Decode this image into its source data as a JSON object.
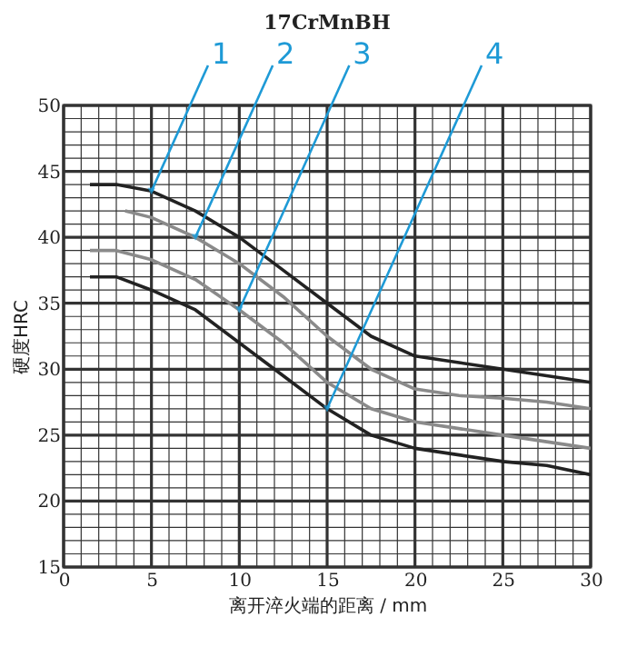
{
  "chart_data": {
    "type": "line",
    "title": "17CrMnBH",
    "xlabel": "离开淬火端的距离 / mm",
    "ylabel": "硬度HRC",
    "x": [
      1.5,
      3,
      5,
      7.5,
      10,
      12.5,
      15,
      17.5,
      20,
      22.5,
      25,
      27.5,
      30
    ],
    "series": [
      {
        "color": "#222222",
        "values": [
          44,
          44,
          43.5,
          42,
          40,
          37.5,
          35,
          32.5,
          31,
          30.5,
          30,
          29.5,
          29
        ]
      },
      {
        "color": "#8a8a8a",
        "x": [
          3.5,
          5,
          7.5,
          10,
          12.5,
          15,
          17.5,
          20,
          22.5,
          25,
          27.5,
          30
        ],
        "values": [
          42,
          41.5,
          40,
          38,
          35.5,
          32.5,
          30,
          28.5,
          28,
          27.8,
          27.5,
          27
        ]
      },
      {
        "color": "#8a8a8a",
        "values": [
          39,
          39,
          38.3,
          36.8,
          34.5,
          32,
          29,
          27,
          26,
          25.5,
          25,
          24.5,
          24
        ]
      },
      {
        "color": "#222222",
        "values": [
          37,
          37,
          36,
          34.5,
          32,
          29.5,
          27,
          25,
          24,
          23.5,
          23,
          22.7,
          22
        ]
      }
    ],
    "annotations": [
      {
        "text": "1",
        "x": 5,
        "y": 43.5
      },
      {
        "text": "2",
        "x": 7.5,
        "y": 40
      },
      {
        "text": "3",
        "x": 10,
        "y": 34.5
      },
      {
        "text": "4",
        "x": 15,
        "y": 27
      }
    ],
    "xlim": [
      0,
      30
    ],
    "ylim": [
      15,
      50
    ],
    "xticks": [
      0,
      {
        "value": 1,
        "label": null
      },
      {
        "value": 2,
        "label": null
      },
      {
        "value": 3,
        "label": null
      },
      {
        "value": 4,
        "label": null
      },
      5,
      {
        "value": 6,
        "label": null
      },
      {
        "value": 7,
        "label": null
      },
      {
        "value": 8,
        "label": null
      },
      {
        "value": 9,
        "label": null
      },
      10,
      {
        "value": 11,
        "label": null
      },
      {
        "value": 12,
        "label": null
      },
      {
        "value": 13,
        "label": null
      },
      {
        "value": 14,
        "label": null
      },
      15,
      {
        "value": 16,
        "label": null
      },
      {
        "value": 17,
        "label": null
      },
      {
        "value": 18,
        "label": null
      },
      {
        "value": 19,
        "label": null
      },
      20,
      {
        "value": 21,
        "label": null
      },
      {
        "value": 22,
        "label": null
      },
      {
        "value": 23,
        "label": null
      },
      {
        "value": 24,
        "label": null
      },
      25,
      {
        "value": 26,
        "label": null
      },
      {
        "value": 27,
        "label": null
      },
      {
        "value": 28,
        "label": null
      },
      {
        "value": 29,
        "label": null
      },
      30
    ],
    "yticks": [
      15,
      {
        "value": 16,
        "label": null
      },
      {
        "value": 17,
        "label": null
      },
      {
        "value": 18,
        "label": null
      },
      {
        "value": 19,
        "label": null
      },
      20,
      {
        "value": 21,
        "label": null
      },
      {
        "value": 22,
        "label": null
      },
      {
        "value": 23,
        "label": null
      },
      {
        "value": 24,
        "label": null
      },
      25,
      {
        "value": 26,
        "label": null
      },
      {
        "value": 27,
        "label": null
      },
      {
        "value": 28,
        "label": null
      },
      {
        "value": 29,
        "label": null
      },
      30,
      {
        "value": 31,
        "label": null
      },
      {
        "value": 32,
        "label": null
      },
      {
        "value": 33,
        "label": null
      },
      {
        "value": 34,
        "label": null
      },
      35,
      {
        "value": 36,
        "label": null
      },
      {
        "value": 37,
        "label": null
      },
      {
        "value": 38,
        "label": null
      },
      {
        "value": 39,
        "label": null
      },
      40,
      {
        "value": 41,
        "label": null
      },
      {
        "value": 42,
        "label": null
      },
      {
        "value": 43,
        "label": null
      },
      {
        "value": 44,
        "label": null
      },
      45,
      {
        "value": 46,
        "label": null
      },
      {
        "value": 47,
        "label": null
      },
      {
        "value": 48,
        "label": null
      },
      {
        "value": 49,
        "label": null
      },
      50
    ],
    "grid": true,
    "marker": "none",
    "line_style": "solid"
  }
}
